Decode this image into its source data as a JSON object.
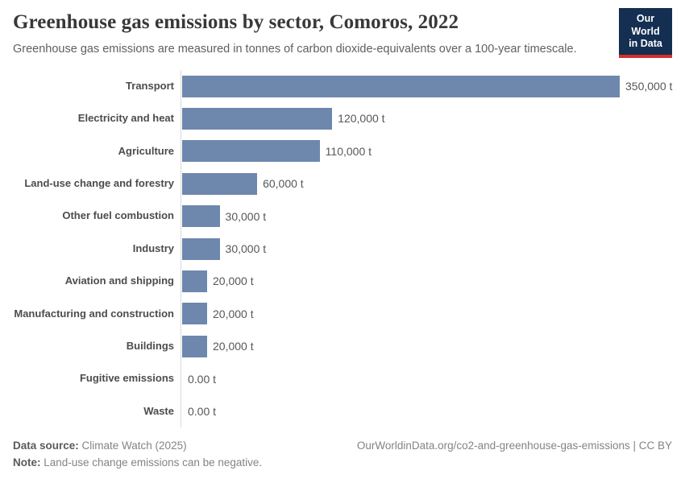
{
  "header": {
    "title": "Greenhouse gas emissions by sector, Comoros, 2022",
    "subtitle": "Greenhouse gas emissions are measured in tonnes of carbon dioxide-equivalents over a 100-year timescale.",
    "logo": {
      "line1": "Our World",
      "line2": "in Data"
    }
  },
  "chart_data": {
    "type": "bar",
    "orientation": "horizontal",
    "title": "Greenhouse gas emissions by sector, Comoros, 2022",
    "categories": [
      "Transport",
      "Electricity and heat",
      "Agriculture",
      "Land-use change and forestry",
      "Other fuel combustion",
      "Industry",
      "Aviation and shipping",
      "Manufacturing and construction",
      "Buildings",
      "Fugitive emissions",
      "Waste"
    ],
    "values": [
      350000,
      120000,
      110000,
      60000,
      30000,
      30000,
      20000,
      20000,
      20000,
      0,
      0
    ],
    "value_labels": [
      "350,000 t",
      "120,000 t",
      "110,000 t",
      "60,000 t",
      "30,000 t",
      "30,000 t",
      "20,000 t",
      "20,000 t",
      "20,000 t",
      "0.00 t",
      "0.00 t"
    ],
    "unit": "t",
    "xlim": [
      0,
      350000
    ],
    "grid": false,
    "legend": "none",
    "bar_color": "#6e87ad",
    "axis_line_color": "#d9d9d9"
  },
  "footer": {
    "data_source_label": "Data source:",
    "data_source_value": " Climate Watch (2025)",
    "note_label": "Note:",
    "note_value": " Land-use change emissions can be negative.",
    "citation": "OurWorldinData.org/co2-and-greenhouse-gas-emissions | CC BY"
  },
  "colors": {
    "bar": "#6e87ad",
    "logo_navy": "#142f52",
    "logo_red": "#d0312d",
    "title_text": "#383838",
    "axis_line": "#d9d9d9"
  }
}
